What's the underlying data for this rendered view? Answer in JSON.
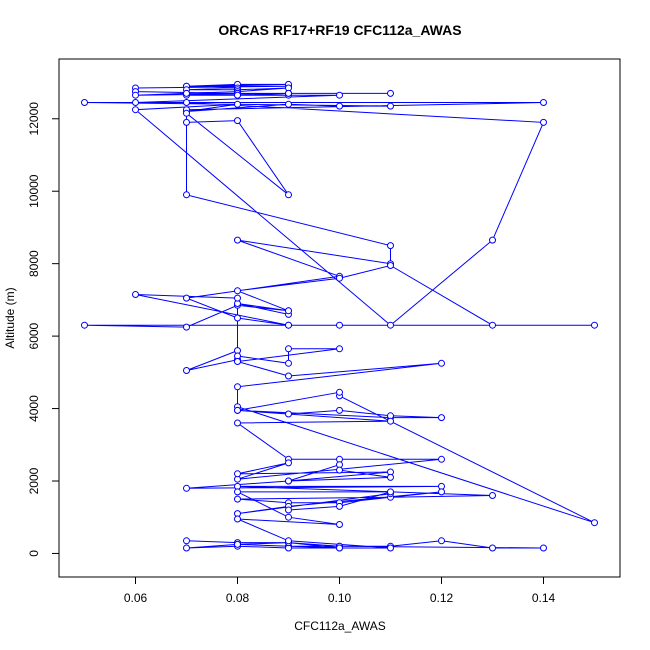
{
  "chart_data": {
    "type": "scatter",
    "title": "ORCAS RF17+RF19 CFC112a_AWAS",
    "xlabel": "CFC112a_AWAS",
    "ylabel": "Altitude (m)",
    "xlim": [
      0.045,
      0.155
    ],
    "ylim": [
      -650,
      13650
    ],
    "xticks": [
      0.06,
      0.08,
      0.1,
      0.12,
      0.14
    ],
    "xtick_labels": [
      "0.06",
      "0.08",
      "0.10",
      "0.12",
      "0.14"
    ],
    "yticks": [
      0,
      2000,
      4000,
      6000,
      8000,
      10000,
      12000
    ],
    "ytick_labels": [
      "0",
      "2000",
      "4000",
      "6000",
      "8000",
      "10000",
      "12000"
    ],
    "grid": false,
    "color": "#0000ff",
    "series": [
      {
        "x": [
          0.06,
          0.09,
          0.07,
          0.08,
          0.09,
          0.07,
          0.08,
          0.07,
          0.08,
          0.09,
          0.08,
          0.07,
          0.08,
          0.06,
          0.08,
          0.09,
          0.07,
          0.08,
          0.09,
          0.11,
          0.07,
          0.06,
          0.09,
          0.08,
          0.1,
          0.06,
          0.07,
          0.14,
          0.13,
          0.11,
          0.06,
          0.08,
          0.07,
          0.09,
          0.1,
          0.11,
          0.05,
          0.14,
          0.07,
          0.07,
          0.08,
          0.09,
          0.07,
          0.07,
          0.11,
          0.11,
          0.08,
          0.1,
          0.07,
          0.08,
          0.09,
          0.1,
          0.05,
          0.07,
          0.08,
          0.09,
          0.09,
          0.08,
          0.09,
          0.08,
          0.1,
          0.11,
          0.13,
          0.15,
          0.09,
          0.06,
          0.08,
          0.08,
          0.07,
          0.08,
          0.08,
          0.09,
          0.09,
          0.1,
          0.08,
          0.09,
          0.12,
          0.08,
          0.08,
          0.15,
          0.1,
          0.1,
          0.08,
          0.11,
          0.12,
          0.11,
          0.1,
          0.09,
          0.08,
          0.11,
          0.08,
          0.09,
          0.1,
          0.12,
          0.08,
          0.09,
          0.08,
          0.11,
          0.09,
          0.1,
          0.1,
          0.11,
          0.09,
          0.07,
          0.12,
          0.08,
          0.13,
          0.11,
          0.08,
          0.09,
          0.1,
          0.12,
          0.09,
          0.08,
          0.11
        ],
        "y": [
          12850,
          12900,
          12900,
          12950,
          12950,
          12900,
          12850,
          12800,
          12800,
          12850,
          12750,
          12700,
          12700,
          12750,
          12700,
          12650,
          12650,
          12650,
          12700,
          12700,
          12700,
          12650,
          12700,
          12650,
          12650,
          12450,
          12450,
          11900,
          8650,
          6300,
          12250,
          12400,
          12200,
          12400,
          12350,
          12350,
          12450,
          12450,
          12250,
          11900,
          11950,
          9900,
          12150,
          9900,
          8500,
          8000,
          8650,
          7650,
          7050,
          6500,
          6300,
          6300,
          6300,
          6250,
          6850,
          6700,
          6600,
          6900,
          6700,
          7250,
          7600,
          7950,
          6300,
          6300,
          6300,
          7150,
          7050,
          5600,
          5050,
          5350,
          5450,
          5250,
          5650,
          5650,
          5300,
          4900,
          5250,
          4600,
          4050,
          850,
          4350,
          4450,
          3950,
          3750,
          3750,
          3800,
          3950,
          3850,
          3950,
          3650,
          3600,
          2600,
          2600,
          2600,
          2050,
          2500,
          2200,
          2250,
          2000,
          2450,
          2300,
          2100,
          2000,
          1800,
          1850,
          1850,
          1600,
          1550,
          1500,
          1400,
          1400,
          1700,
          1300,
          1100,
          1650
        ]
      },
      {
        "x": [
          0.07,
          0.08,
          0.09,
          0.1,
          0.11,
          0.12,
          0.13,
          0.14,
          0.1,
          0.09,
          0.08,
          0.1,
          0.09,
          0.08,
          0.07,
          0.08,
          0.09,
          0.1,
          0.11,
          0.09,
          0.08,
          0.1,
          0.09,
          0.08,
          0.11,
          0.1,
          0.09
        ],
        "y": [
          350,
          300,
          300,
          200,
          200,
          350,
          150,
          150,
          200,
          200,
          250,
          150,
          150,
          200,
          150,
          250,
          300,
          150,
          150,
          350,
          950,
          800,
          1000,
          1700,
          1700,
          1300,
          1200
        ]
      }
    ]
  }
}
